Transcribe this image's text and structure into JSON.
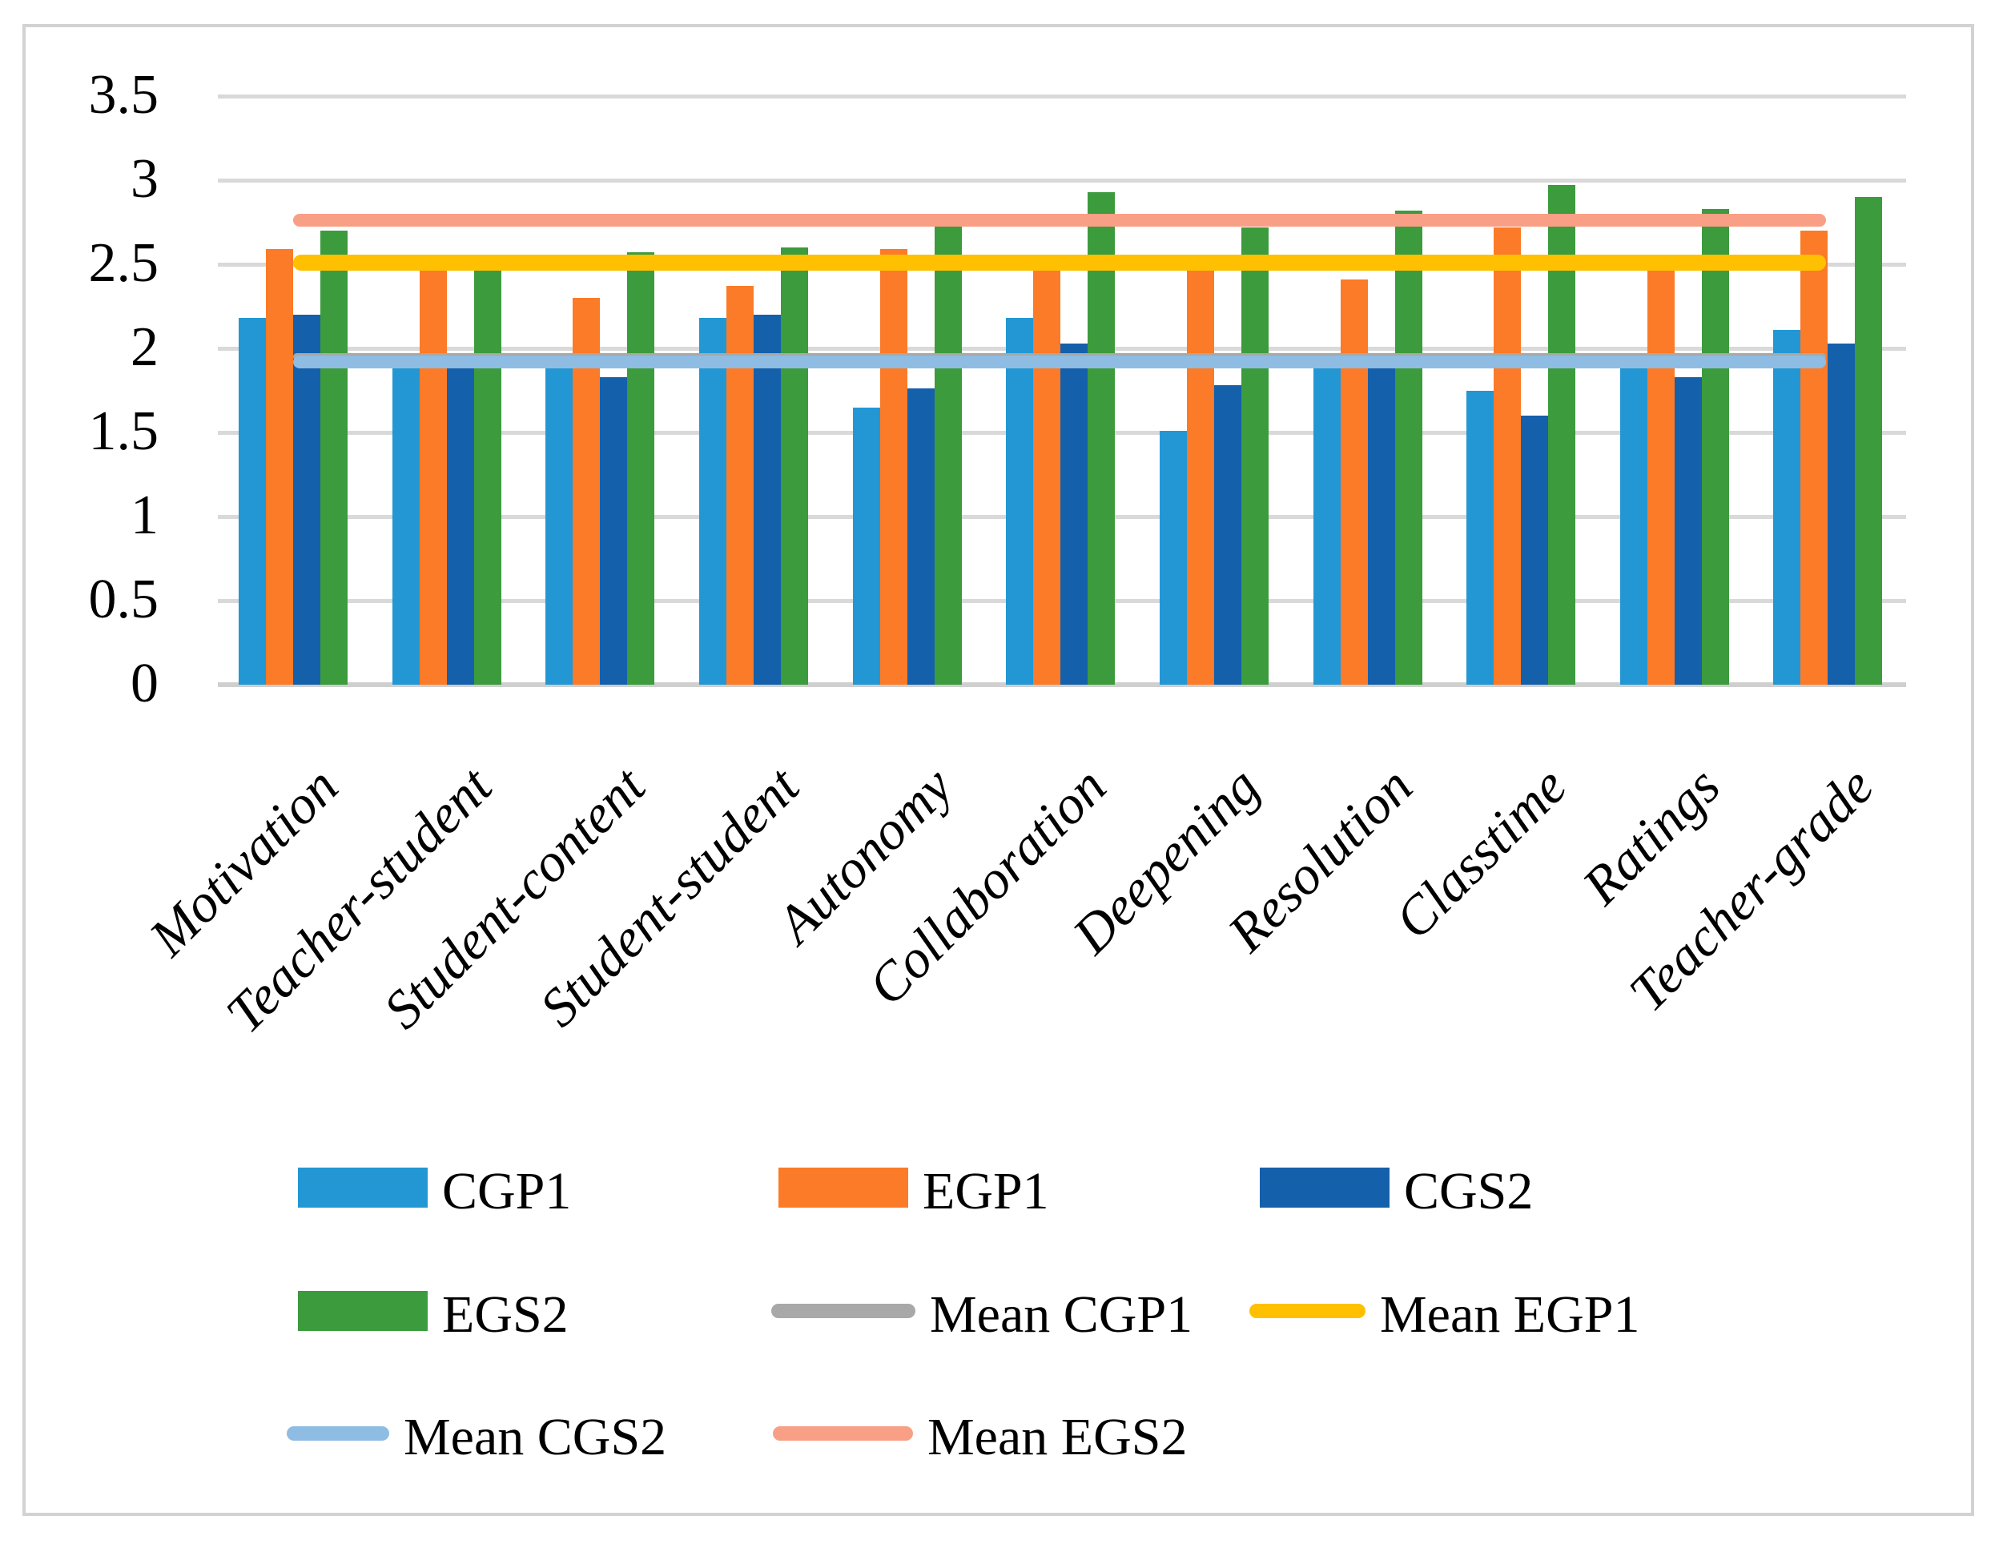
{
  "chart_data": {
    "type": "bar",
    "title": "",
    "xlabel": "",
    "ylabel": "",
    "ylim": [
      0,
      3.5
    ],
    "ytick_step": 0.5,
    "yticks": [
      "3.5",
      "3",
      "2.5",
      "2",
      "1.5",
      "1",
      "0.5",
      "0"
    ],
    "grid": true,
    "legend_position": "bottom",
    "categories": [
      "Motivation",
      "Teacher-student",
      "Student-content",
      "Student-student",
      "Autonomy",
      "Collaboration",
      "Deepening",
      "Resolution",
      "Classtime",
      "Ratings",
      "Teacher-grade"
    ],
    "series": [
      {
        "name": "CGP1",
        "type": "bar",
        "color": "#2397d4",
        "values": [
          2.18,
          1.95,
          1.95,
          2.18,
          1.65,
          2.18,
          1.51,
          1.95,
          1.75,
          1.95,
          2.11
        ]
      },
      {
        "name": "EGP1",
        "type": "bar",
        "color": "#fb7b28",
        "values": [
          2.59,
          2.47,
          2.3,
          2.37,
          2.59,
          2.47,
          2.47,
          2.41,
          2.72,
          2.47,
          2.7
        ]
      },
      {
        "name": "CGS2",
        "type": "bar",
        "color": "#1560ab",
        "values": [
          2.2,
          1.93,
          1.83,
          2.2,
          1.76,
          2.03,
          1.78,
          1.93,
          1.6,
          1.83,
          2.03
        ]
      },
      {
        "name": "EGS2",
        "type": "bar",
        "color": "#3c9b3d",
        "values": [
          2.7,
          2.47,
          2.57,
          2.6,
          2.78,
          2.93,
          2.72,
          2.82,
          2.97,
          2.83,
          2.9
        ]
      },
      {
        "name": "Mean CGP1",
        "type": "line",
        "color": "#a8a8a8",
        "value": 1.95,
        "thickness": 9
      },
      {
        "name": "Mean CGS2",
        "type": "line",
        "color": "#8fbce2",
        "value": 1.92,
        "thickness": 16
      },
      {
        "name": "Mean EGP1",
        "type": "line",
        "color": "#ffc002",
        "value": 2.51,
        "thickness": 20
      },
      {
        "name": "Mean EGS2",
        "type": "line",
        "color": "#f99f85",
        "value": 2.76,
        "thickness": 16
      }
    ]
  },
  "legend": {
    "items": [
      {
        "label": "CGP1",
        "series": "CGP1",
        "marker": "bar"
      },
      {
        "label": "EGP1",
        "series": "EGP1",
        "marker": "bar"
      },
      {
        "label": "CGS2",
        "series": "CGS2",
        "marker": "bar"
      },
      {
        "label": "EGS2",
        "series": "EGS2",
        "marker": "bar"
      },
      {
        "label": "Mean CGP1",
        "series": "Mean CGP1",
        "marker": "line"
      },
      {
        "label": "Mean EGP1",
        "series": "Mean EGP1",
        "marker": "line"
      },
      {
        "label": "Mean CGS2",
        "series": "Mean CGS2",
        "marker": "line"
      },
      {
        "label": "Mean EGS2",
        "series": "Mean EGS2",
        "marker": "line"
      }
    ]
  },
  "colors": {
    "gridline": "#d9d9d9",
    "frame_border": "#d2d2d2",
    "text": "#000000"
  }
}
